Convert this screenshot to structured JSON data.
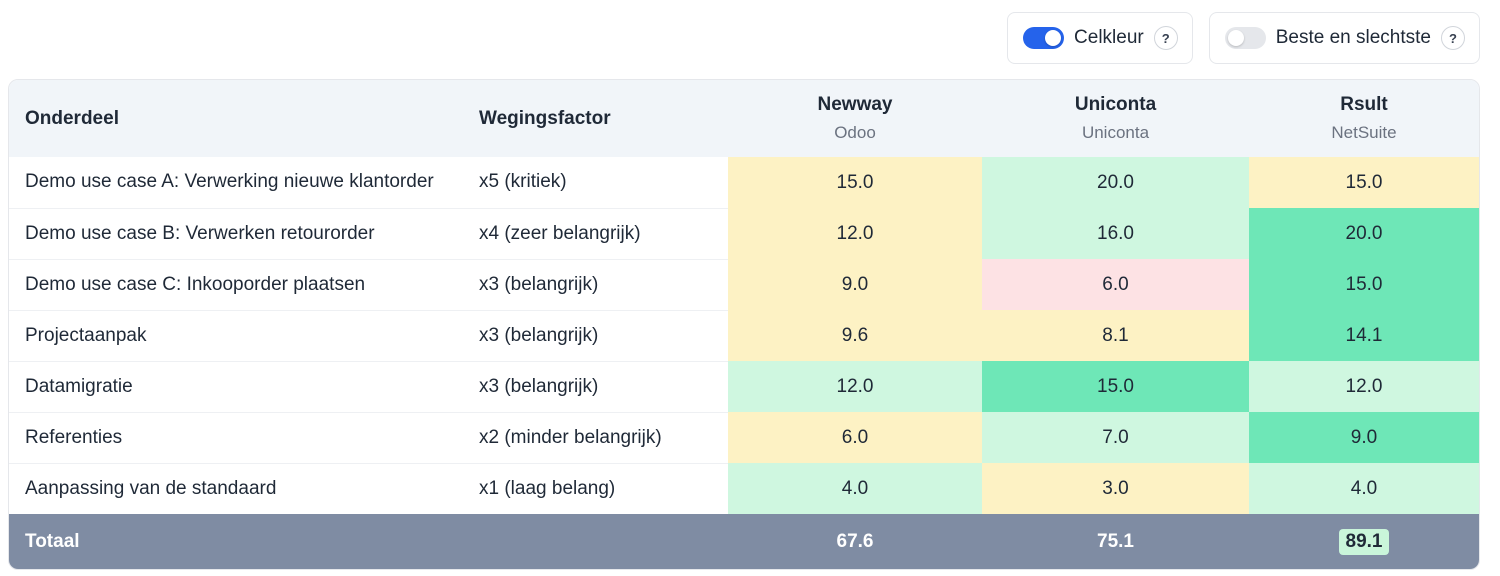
{
  "toggles": [
    {
      "label": "Celkleur",
      "on": true,
      "help": "?"
    },
    {
      "label": "Beste en slechtste",
      "on": false,
      "help": "?"
    }
  ],
  "colors": {
    "yellow": "#fdf2c4",
    "light_green": "#cff7e0",
    "green": "#6ee7b7",
    "pink": "#fde2e4",
    "footer": "#7f8ca3",
    "toggle_on": "#2563eb"
  },
  "table": {
    "headers": {
      "onderdeel": "Onderdeel",
      "weging": "Wegingsfactor"
    },
    "vendors": [
      {
        "name": "Newway",
        "product": "Odoo"
      },
      {
        "name": "Uniconta",
        "product": "Uniconta"
      },
      {
        "name": "Rsult",
        "product": "NetSuite"
      }
    ],
    "rows": [
      {
        "onderdeel": "Demo use case A: Verwerking nieuwe klantorder",
        "weging": "x5 (kritiek)",
        "scores": [
          {
            "value": "15.0",
            "color": "yellow"
          },
          {
            "value": "20.0",
            "color": "light_green"
          },
          {
            "value": "15.0",
            "color": "yellow"
          }
        ]
      },
      {
        "onderdeel": "Demo use case B: Verwerken retourorder",
        "weging": "x4 (zeer belangrijk)",
        "scores": [
          {
            "value": "12.0",
            "color": "yellow"
          },
          {
            "value": "16.0",
            "color": "light_green"
          },
          {
            "value": "20.0",
            "color": "green"
          }
        ]
      },
      {
        "onderdeel": "Demo use case C: Inkooporder plaatsen",
        "weging": "x3 (belangrijk)",
        "scores": [
          {
            "value": "9.0",
            "color": "yellow"
          },
          {
            "value": "6.0",
            "color": "pink"
          },
          {
            "value": "15.0",
            "color": "green"
          }
        ]
      },
      {
        "onderdeel": "Projectaanpak",
        "weging": "x3 (belangrijk)",
        "scores": [
          {
            "value": "9.6",
            "color": "yellow"
          },
          {
            "value": "8.1",
            "color": "yellow"
          },
          {
            "value": "14.1",
            "color": "green"
          }
        ]
      },
      {
        "onderdeel": "Datamigratie",
        "weging": "x3 (belangrijk)",
        "scores": [
          {
            "value": "12.0",
            "color": "light_green"
          },
          {
            "value": "15.0",
            "color": "green"
          },
          {
            "value": "12.0",
            "color": "light_green"
          }
        ]
      },
      {
        "onderdeel": "Referenties",
        "weging": "x2 (minder belangrijk)",
        "scores": [
          {
            "value": "6.0",
            "color": "yellow"
          },
          {
            "value": "7.0",
            "color": "light_green"
          },
          {
            "value": "9.0",
            "color": "green"
          }
        ]
      },
      {
        "onderdeel": "Aanpassing van de standaard",
        "weging": "x1 (laag belang)",
        "scores": [
          {
            "value": "4.0",
            "color": "light_green"
          },
          {
            "value": "3.0",
            "color": "yellow"
          },
          {
            "value": "4.0",
            "color": "light_green"
          }
        ]
      }
    ],
    "total": {
      "label": "Totaal",
      "values": [
        "67.6",
        "75.1",
        "89.1"
      ],
      "best_index": 2
    }
  }
}
